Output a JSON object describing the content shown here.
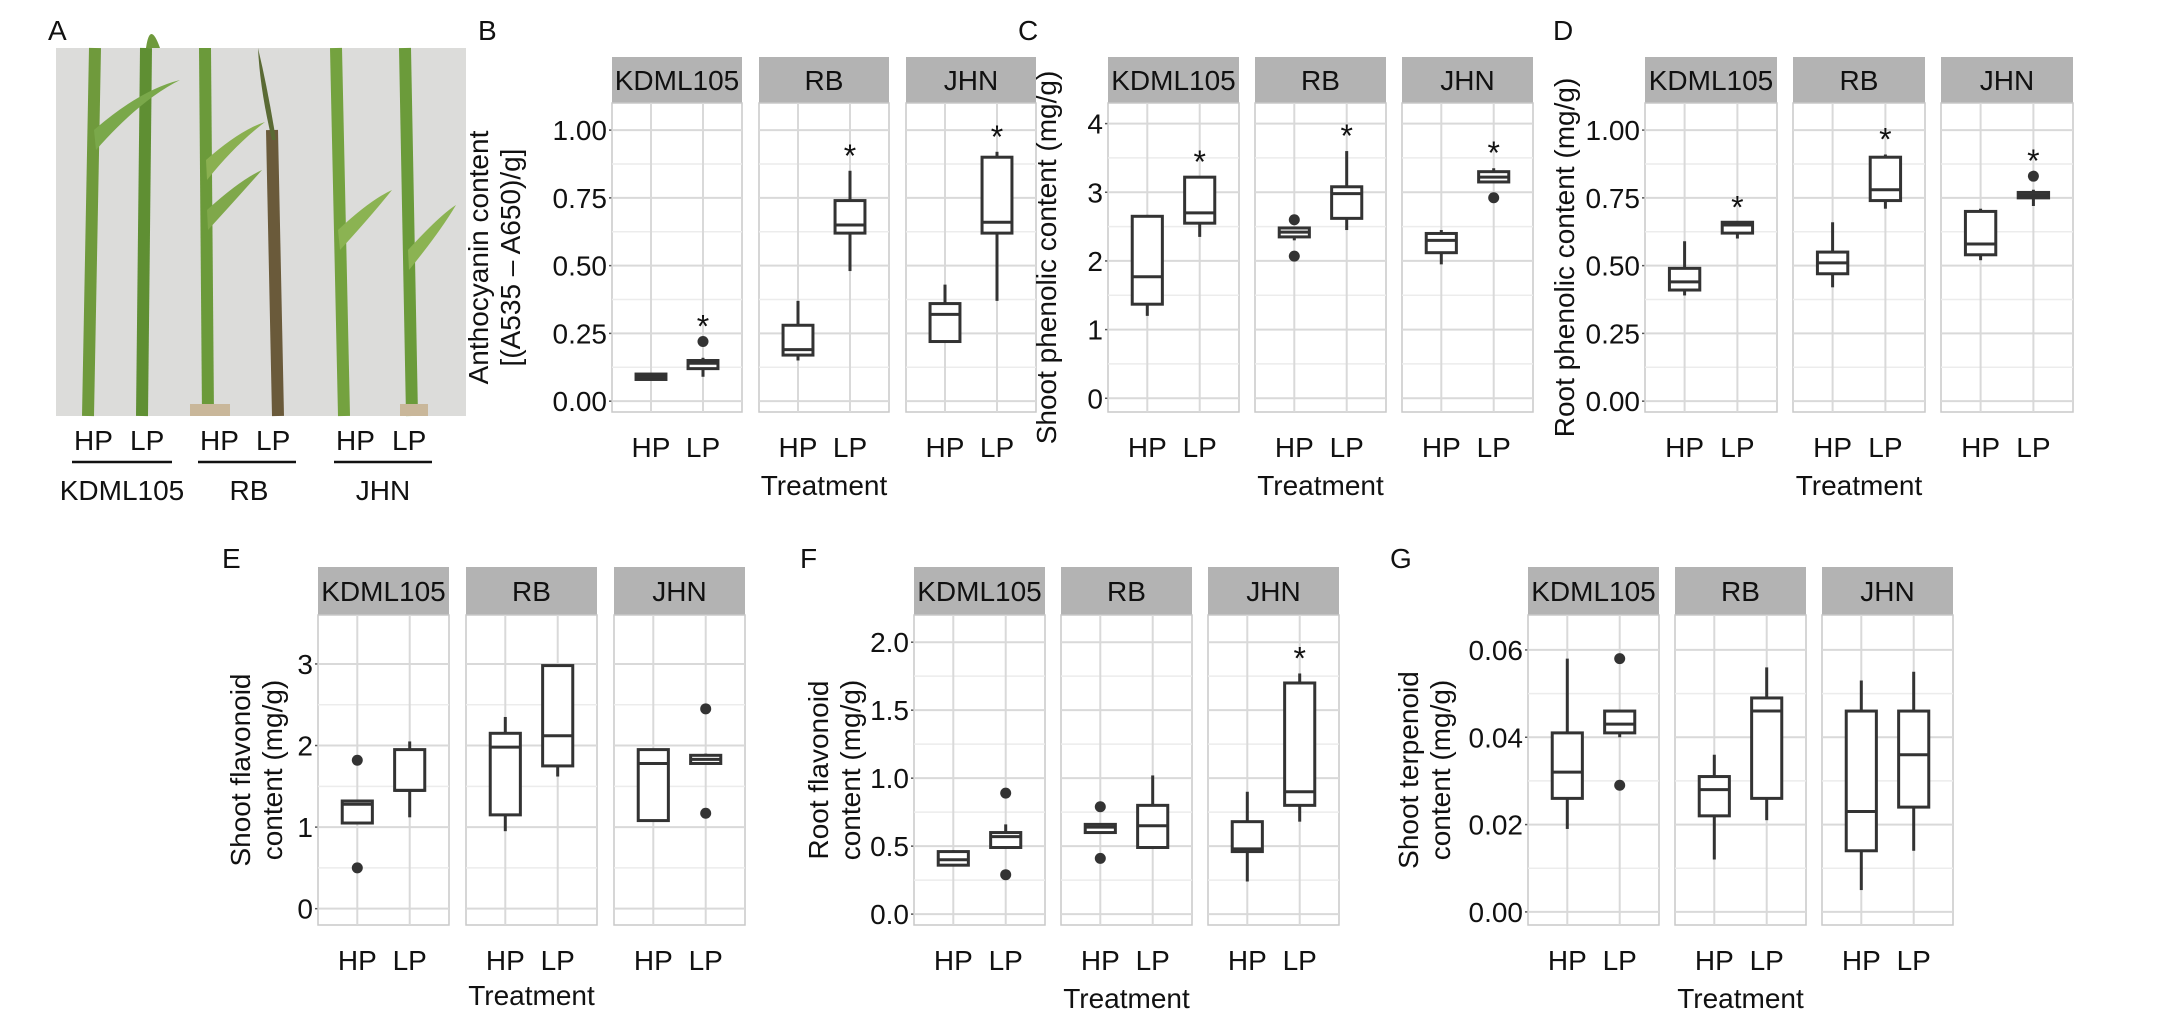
{
  "figure": {
    "photo": {
      "letter": "A",
      "treatment_labels": [
        "HP",
        "LP"
      ],
      "cultivars": [
        "KDML105",
        "RB",
        "JHN"
      ]
    },
    "facets": [
      "KDML105",
      "RB",
      "JHN"
    ],
    "groups": [
      "HP",
      "LP"
    ],
    "significance_mark": "*",
    "colors": {
      "facet_strip": "#b3b3b3",
      "grid": "#d9d9d9",
      "box": "#333333",
      "photo_background": "#d9d9d7",
      "stem": "#6f9a3c"
    }
  },
  "chart_data": [
    {
      "id": "B",
      "type": "box",
      "ylabel_lines": [
        "Anthocyanin content",
        "[(A535 – A650)/g]"
      ],
      "xlabel": "Treatment",
      "ylim": [
        -0.04,
        1.1
      ],
      "yticks": [
        "0.00",
        "0.25",
        "0.50",
        "0.75",
        "1.00"
      ],
      "facets": [
        {
          "name": "KDML105",
          "boxes": [
            {
              "group": "HP",
              "min": 0.08,
              "q1": 0.08,
              "median": 0.09,
              "q3": 0.1,
              "max": 0.1,
              "outliers": [],
              "sig": false
            },
            {
              "group": "LP",
              "min": 0.09,
              "q1": 0.12,
              "median": 0.14,
              "q3": 0.15,
              "max": 0.16,
              "outliers": [
                0.22
              ],
              "sig": true
            }
          ]
        },
        {
          "name": "RB",
          "boxes": [
            {
              "group": "HP",
              "min": 0.15,
              "q1": 0.17,
              "median": 0.19,
              "q3": 0.28,
              "max": 0.37,
              "outliers": [],
              "sig": false
            },
            {
              "group": "LP",
              "min": 0.48,
              "q1": 0.62,
              "median": 0.65,
              "q3": 0.74,
              "max": 0.85,
              "outliers": [],
              "sig": true
            }
          ]
        },
        {
          "name": "JHN",
          "boxes": [
            {
              "group": "HP",
              "min": 0.22,
              "q1": 0.22,
              "median": 0.32,
              "q3": 0.36,
              "max": 0.43,
              "outliers": [],
              "sig": false
            },
            {
              "group": "LP",
              "min": 0.37,
              "q1": 0.62,
              "median": 0.66,
              "q3": 0.9,
              "max": 0.92,
              "outliers": [],
              "sig": true
            }
          ]
        }
      ]
    },
    {
      "id": "C",
      "type": "box",
      "ylabel_lines": [
        "Shoot phenolic content (mg/g)"
      ],
      "xlabel": "Treatment",
      "ylim": [
        -0.2,
        4.3
      ],
      "yticks": [
        "0",
        "1",
        "2",
        "3",
        "4"
      ],
      "facets": [
        {
          "name": "KDML105",
          "boxes": [
            {
              "group": "HP",
              "min": 1.2,
              "q1": 1.37,
              "median": 1.77,
              "q3": 2.65,
              "max": 2.67,
              "outliers": [],
              "sig": false
            },
            {
              "group": "LP",
              "min": 2.35,
              "q1": 2.55,
              "median": 2.7,
              "q3": 3.22,
              "max": 3.22,
              "outliers": [],
              "sig": true
            }
          ]
        },
        {
          "name": "RB",
          "boxes": [
            {
              "group": "HP",
              "min": 2.3,
              "q1": 2.35,
              "median": 2.42,
              "q3": 2.48,
              "max": 2.5,
              "outliers": [
                2.07,
                2.6
              ],
              "sig": false
            },
            {
              "group": "LP",
              "min": 2.45,
              "q1": 2.62,
              "median": 2.98,
              "q3": 3.08,
              "max": 3.6,
              "outliers": [],
              "sig": true
            }
          ]
        },
        {
          "name": "JHN",
          "boxes": [
            {
              "group": "HP",
              "min": 1.95,
              "q1": 2.12,
              "median": 2.3,
              "q3": 2.4,
              "max": 2.45,
              "outliers": [],
              "sig": false
            },
            {
              "group": "LP",
              "min": 3.15,
              "q1": 3.15,
              "median": 3.22,
              "q3": 3.3,
              "max": 3.35,
              "outliers": [
                2.92
              ],
              "sig": true
            }
          ]
        }
      ]
    },
    {
      "id": "D",
      "type": "box",
      "ylabel_lines": [
        "Root phenolic content (mg/g)"
      ],
      "xlabel": "Treatment",
      "ylim": [
        -0.04,
        1.1
      ],
      "yticks": [
        "0.00",
        "0.25",
        "0.50",
        "0.75",
        "1.00"
      ],
      "facets": [
        {
          "name": "KDML105",
          "boxes": [
            {
              "group": "HP",
              "min": 0.39,
              "q1": 0.41,
              "median": 0.44,
              "q3": 0.49,
              "max": 0.59,
              "outliers": [],
              "sig": false
            },
            {
              "group": "LP",
              "min": 0.6,
              "q1": 0.62,
              "median": 0.65,
              "q3": 0.66,
              "max": 0.66,
              "outliers": [],
              "sig": true
            }
          ]
        },
        {
          "name": "RB",
          "boxes": [
            {
              "group": "HP",
              "min": 0.42,
              "q1": 0.47,
              "median": 0.51,
              "q3": 0.55,
              "max": 0.66,
              "outliers": [],
              "sig": false
            },
            {
              "group": "LP",
              "min": 0.71,
              "q1": 0.74,
              "median": 0.78,
              "q3": 0.9,
              "max": 0.91,
              "outliers": [],
              "sig": true
            }
          ]
        },
        {
          "name": "JHN",
          "boxes": [
            {
              "group": "HP",
              "min": 0.52,
              "q1": 0.54,
              "median": 0.58,
              "q3": 0.7,
              "max": 0.71,
              "outliers": [],
              "sig": false
            },
            {
              "group": "LP",
              "min": 0.72,
              "q1": 0.75,
              "median": 0.76,
              "q3": 0.77,
              "max": 0.78,
              "outliers": [
                0.83
              ],
              "sig": true
            }
          ]
        }
      ]
    },
    {
      "id": "E",
      "type": "box",
      "ylabel_lines": [
        "Shoot flavonoid",
        "content (mg/g)"
      ],
      "xlabel": "Treatment",
      "ylim": [
        -0.2,
        3.6
      ],
      "yticks": [
        "0",
        "1",
        "2",
        "3"
      ],
      "facets": [
        {
          "name": "KDML105",
          "boxes": [
            {
              "group": "HP",
              "min": 1.05,
              "q1": 1.05,
              "median": 1.28,
              "q3": 1.32,
              "max": 1.32,
              "outliers": [
                0.5,
                1.82
              ],
              "sig": false
            },
            {
              "group": "LP",
              "min": 1.12,
              "q1": 1.45,
              "median": 1.45,
              "q3": 1.95,
              "max": 2.05,
              "outliers": [],
              "sig": false
            }
          ]
        },
        {
          "name": "RB",
          "boxes": [
            {
              "group": "HP",
              "min": 0.95,
              "q1": 1.15,
              "median": 1.98,
              "q3": 2.15,
              "max": 2.35,
              "outliers": [],
              "sig": false
            },
            {
              "group": "LP",
              "min": 1.62,
              "q1": 1.75,
              "median": 2.12,
              "q3": 2.98,
              "max": 2.98,
              "outliers": [],
              "sig": false
            }
          ]
        },
        {
          "name": "JHN",
          "boxes": [
            {
              "group": "HP",
              "min": 1.08,
              "q1": 1.08,
              "median": 1.78,
              "q3": 1.95,
              "max": 1.95,
              "outliers": [],
              "sig": false
            },
            {
              "group": "LP",
              "min": 1.78,
              "q1": 1.78,
              "median": 1.83,
              "q3": 1.88,
              "max": 1.9,
              "outliers": [
                1.17,
                2.45
              ],
              "sig": false
            }
          ]
        }
      ]
    },
    {
      "id": "F",
      "type": "box",
      "ylabel_lines": [
        "Root flavonoid",
        "content (mg/g)"
      ],
      "xlabel": "Treatment",
      "ylim": [
        -0.08,
        2.2
      ],
      "yticks": [
        "0.0",
        "0.5",
        "1.0",
        "1.5",
        "2.0"
      ],
      "facets": [
        {
          "name": "KDML105",
          "boxes": [
            {
              "group": "HP",
              "min": 0.36,
              "q1": 0.36,
              "median": 0.4,
              "q3": 0.46,
              "max": 0.47,
              "outliers": [],
              "sig": false
            },
            {
              "group": "LP",
              "min": 0.48,
              "q1": 0.49,
              "median": 0.57,
              "q3": 0.6,
              "max": 0.66,
              "outliers": [
                0.29,
                0.89
              ],
              "sig": false
            }
          ]
        },
        {
          "name": "RB",
          "boxes": [
            {
              "group": "HP",
              "min": 0.6,
              "q1": 0.6,
              "median": 0.64,
              "q3": 0.66,
              "max": 0.66,
              "outliers": [
                0.41,
                0.79
              ],
              "sig": false
            },
            {
              "group": "LP",
              "min": 0.48,
              "q1": 0.49,
              "median": 0.65,
              "q3": 0.8,
              "max": 1.02,
              "outliers": [],
              "sig": false
            }
          ]
        },
        {
          "name": "JHN",
          "boxes": [
            {
              "group": "HP",
              "min": 0.24,
              "q1": 0.46,
              "median": 0.48,
              "q3": 0.68,
              "max": 0.9,
              "outliers": [],
              "sig": false
            },
            {
              "group": "LP",
              "min": 0.68,
              "q1": 0.8,
              "median": 0.9,
              "q3": 1.7,
              "max": 1.77,
              "outliers": [],
              "sig": true
            }
          ]
        }
      ]
    },
    {
      "id": "G",
      "type": "box",
      "ylabel_lines": [
        "Shoot terpenoid",
        "content (mg/g)"
      ],
      "xlabel": "Treatment",
      "ylim": [
        -0.003,
        0.068
      ],
      "yticks": [
        "0.00",
        "0.02",
        "0.04",
        "0.06"
      ],
      "facets": [
        {
          "name": "KDML105",
          "boxes": [
            {
              "group": "HP",
              "min": 0.019,
              "q1": 0.026,
              "median": 0.032,
              "q3": 0.041,
              "max": 0.058,
              "outliers": [],
              "sig": false
            },
            {
              "group": "LP",
              "min": 0.04,
              "q1": 0.041,
              "median": 0.043,
              "q3": 0.046,
              "max": 0.046,
              "outliers": [
                0.029,
                0.058
              ],
              "sig": false
            }
          ]
        },
        {
          "name": "RB",
          "boxes": [
            {
              "group": "HP",
              "min": 0.012,
              "q1": 0.022,
              "median": 0.028,
              "q3": 0.031,
              "max": 0.036,
              "outliers": [],
              "sig": false
            },
            {
              "group": "LP",
              "min": 0.021,
              "q1": 0.026,
              "median": 0.046,
              "q3": 0.049,
              "max": 0.056,
              "outliers": [],
              "sig": false
            }
          ]
        },
        {
          "name": "JHN",
          "boxes": [
            {
              "group": "HP",
              "min": 0.005,
              "q1": 0.014,
              "median": 0.023,
              "q3": 0.046,
              "max": 0.053,
              "outliers": [],
              "sig": false
            },
            {
              "group": "LP",
              "min": 0.014,
              "q1": 0.024,
              "median": 0.036,
              "q3": 0.046,
              "max": 0.055,
              "outliers": [],
              "sig": false
            }
          ]
        }
      ]
    }
  ]
}
